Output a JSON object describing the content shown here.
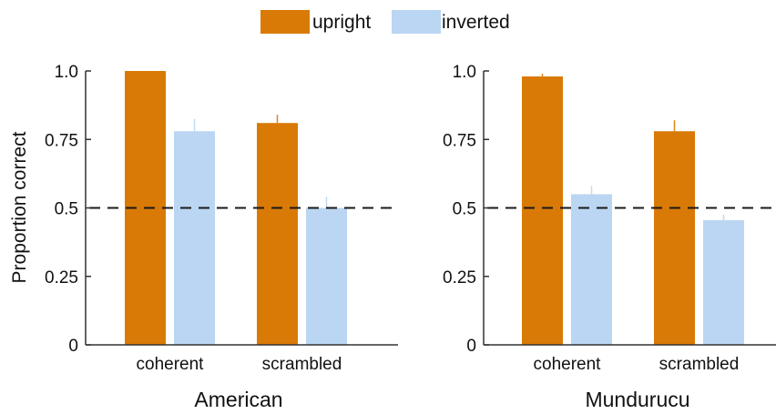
{
  "legend": {
    "items": [
      {
        "label": "upright",
        "color": "#D97A06"
      },
      {
        "label": "inverted",
        "color": "#BAD6F2"
      }
    ],
    "placement": "top-center"
  },
  "chart_data": [
    {
      "type": "bar",
      "title": "American",
      "xlabel": "",
      "ylabel": "Proportion correct",
      "categories": [
        "coherent",
        "scrambled"
      ],
      "series": [
        {
          "name": "upright",
          "values": [
            1.0,
            0.81
          ],
          "errors": [
            0.0,
            0.03
          ],
          "color": "#D97A06"
        },
        {
          "name": "inverted",
          "values": [
            0.78,
            0.5
          ],
          "errors": [
            0.045,
            0.04
          ],
          "color": "#BAD6F2"
        }
      ],
      "ylim": [
        0,
        1
      ],
      "yticks": [
        0,
        0.25,
        0.5,
        0.75,
        1.0
      ],
      "ytick_labels": [
        "0",
        "0.25",
        "0.5",
        "0.75",
        "1.0"
      ],
      "reference_line": {
        "y": 0.5,
        "style": "dashed"
      },
      "grid": false
    },
    {
      "type": "bar",
      "title": "Mundurucu",
      "xlabel": "",
      "ylabel": "",
      "categories": [
        "coherent",
        "scrambled"
      ],
      "series": [
        {
          "name": "upright",
          "values": [
            0.98,
            0.78
          ],
          "errors": [
            0.01,
            0.04
          ],
          "color": "#D97A06"
        },
        {
          "name": "inverted",
          "values": [
            0.55,
            0.455
          ],
          "errors": [
            0.03,
            0.02
          ],
          "color": "#BAD6F2"
        }
      ],
      "ylim": [
        0,
        1
      ],
      "yticks": [
        0,
        0.25,
        0.5,
        0.75,
        1.0
      ],
      "ytick_labels": [
        "0",
        "0.25",
        "0.5",
        "0.75",
        "1.0"
      ],
      "reference_line": {
        "y": 0.5,
        "style": "dashed"
      },
      "grid": false
    }
  ]
}
